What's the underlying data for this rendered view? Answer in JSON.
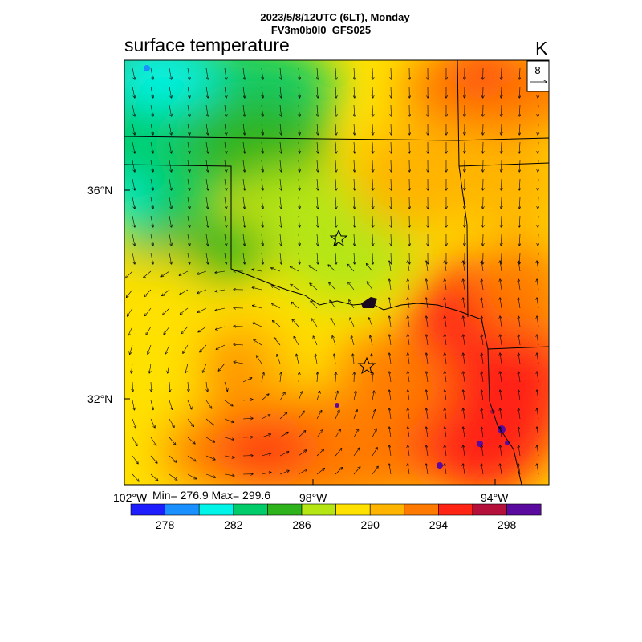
{
  "header": {
    "line1": "2023/5/8/12UTC (6LT), Monday",
    "line2": "FV3m0b0l0_GFS025"
  },
  "field_title": "surface temperature",
  "units": "K",
  "reference_vector": {
    "label": "8"
  },
  "stats": "Min= 276.9 Max= 299.6",
  "lat_labels": [
    "36°N",
    "32°N"
  ],
  "lon_labels": [
    "102°W",
    "98°W",
    "94°W"
  ],
  "colorbar": {
    "colors": [
      "#1d1dff",
      "#1a8fff",
      "#00f5e8",
      "#00cd6a",
      "#2eb31c",
      "#b5e614",
      "#ffe100",
      "#ffb400",
      "#ff7a00",
      "#ff2414",
      "#b50f3c",
      "#5a0a9e"
    ],
    "labels": [
      "278",
      "282",
      "286",
      "290",
      "294",
      "298"
    ]
  }
}
